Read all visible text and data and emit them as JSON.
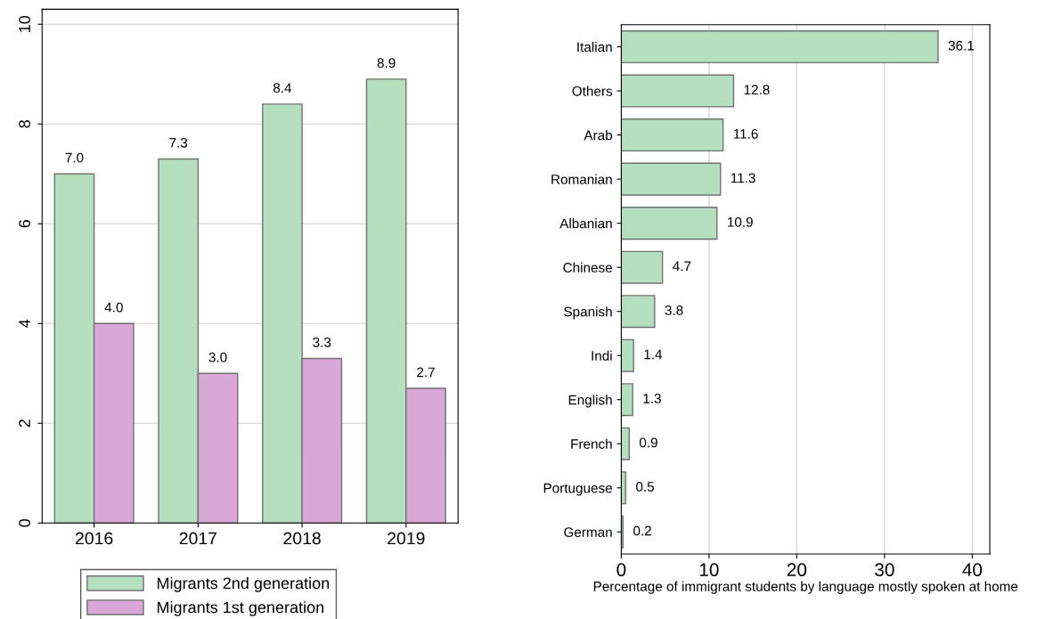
{
  "chart_data": [
    {
      "type": "bar",
      "categories": [
        "2016",
        "2017",
        "2018",
        "2019"
      ],
      "series": [
        {
          "name": "Migrants 2nd generation",
          "color": "#b5e0c0",
          "values": [
            7.0,
            7.3,
            8.4,
            8.9
          ]
        },
        {
          "name": "Migrants 1st generation",
          "color": "#d9a8d9",
          "values": [
            4.0,
            3.0,
            3.3,
            2.7
          ]
        }
      ],
      "value_labels": [
        [
          "7.0",
          "7.3",
          "8.4",
          "8.9"
        ],
        [
          "4.0",
          "3.0",
          "3.3",
          "2.7"
        ]
      ],
      "ylim": [
        0,
        10.3
      ],
      "yticks": [
        0,
        2,
        4,
        6,
        8,
        10
      ],
      "grid": "y",
      "legend": "bottom"
    },
    {
      "type": "bar",
      "orientation": "horizontal",
      "xlabel": "Percentage of immigrant students by language mostly spoken at home",
      "categories": [
        "Italian",
        "Others",
        "Arab",
        "Romanian",
        "Albanian",
        "Chinese",
        "Spanish",
        "Indi",
        "English",
        "French",
        "Portuguese",
        "German"
      ],
      "values": [
        36.1,
        12.8,
        11.6,
        11.3,
        10.9,
        4.7,
        3.8,
        1.4,
        1.3,
        0.9,
        0.5,
        0.2
      ],
      "color": "#b5e0c0",
      "data_labels": true,
      "xlim": [
        0,
        42
      ],
      "xticks": [
        0,
        10,
        20,
        30,
        40
      ],
      "grid": "x"
    }
  ]
}
